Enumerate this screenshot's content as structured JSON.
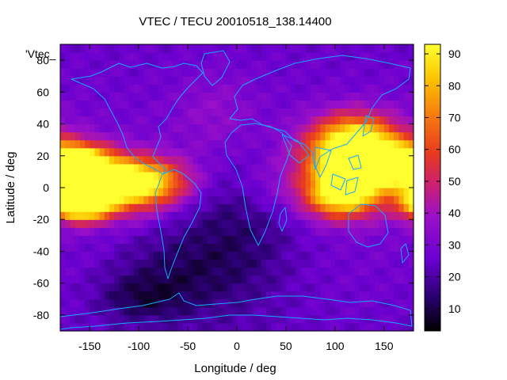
{
  "chart_data": {
    "type": "heatmap",
    "title": "VTEC / TECU 20010518_138.14400",
    "xlabel": "Longitude / deg",
    "ylabel": "Latitude / deg",
    "legend_entry": "'Vtec_",
    "xlim": [
      -180,
      180
    ],
    "ylim": [
      -90,
      90
    ],
    "x_ticks": [
      -150,
      -100,
      -50,
      0,
      50,
      100,
      150
    ],
    "y_ticks": [
      -80,
      -60,
      -40,
      -20,
      0,
      20,
      40,
      60,
      80
    ],
    "colorbar": {
      "range": [
        3,
        93
      ],
      "ticks": [
        10,
        20,
        30,
        40,
        50,
        60,
        70,
        80,
        90
      ],
      "colormap": [
        "#000000",
        "#2a0070",
        "#6a00d0",
        "#9a10c8",
        "#c81e78",
        "#e83a1e",
        "#f67a10",
        "#fcc400",
        "#ffff30"
      ]
    },
    "features": [
      {
        "lon": -165,
        "lat": 14,
        "value": 86,
        "sx": 24,
        "sy": 9
      },
      {
        "lon": -160,
        "lat": -10,
        "value": 84,
        "sx": 20,
        "sy": 7
      },
      {
        "lon": -130,
        "lat": 2,
        "value": 55,
        "sx": 35,
        "sy": 12
      },
      {
        "lon": -90,
        "lat": 4,
        "value": 46,
        "sx": 30,
        "sy": 10
      },
      {
        "lon": 125,
        "lat": 14,
        "value": 70,
        "sx": 38,
        "sy": 14
      },
      {
        "lon": 105,
        "lat": -5,
        "value": 56,
        "sx": 25,
        "sy": 10
      },
      {
        "lon": 120,
        "lat": 30,
        "value": 52,
        "sx": 30,
        "sy": 12
      },
      {
        "lon": 0,
        "lat": -25,
        "value": -14,
        "sx": 45,
        "sy": 35
      },
      {
        "lon": -70,
        "lat": -55,
        "value": -12,
        "sx": 45,
        "sy": 20
      },
      {
        "lon": -100,
        "lat": -70,
        "value": -10,
        "sx": 30,
        "sy": 10
      },
      {
        "lon": 30,
        "lat": 0,
        "value": 6,
        "sx": 25,
        "sy": 12
      },
      {
        "lon": -20,
        "lat": 45,
        "value": 8,
        "sx": 30,
        "sy": 20
      }
    ]
  }
}
